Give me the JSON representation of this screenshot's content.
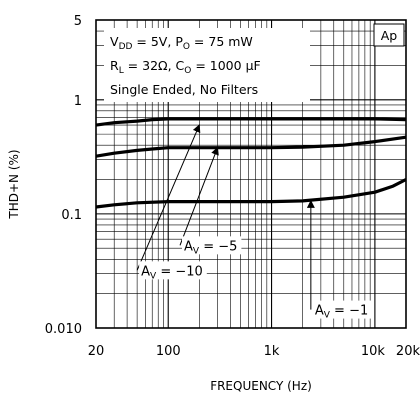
{
  "chart_data": {
    "type": "line",
    "xlabel": "FREQUENCY (Hz)",
    "ylabel": "THD+N (%)",
    "x_scale": "log",
    "y_scale": "log",
    "xlim": [
      20,
      20000
    ],
    "ylim": [
      0.01,
      5
    ],
    "grid": true,
    "x_ticks": [
      {
        "value": 20,
        "label": "20"
      },
      {
        "value": 100,
        "label": "100"
      },
      {
        "value": 1000,
        "label": "1k"
      },
      {
        "value": 10000,
        "label": "10k"
      },
      {
        "value": 20000,
        "label": "20k"
      }
    ],
    "y_ticks": [
      {
        "value": 0.01,
        "label": "0.010"
      },
      {
        "value": 0.1,
        "label": "0.1"
      },
      {
        "value": 1,
        "label": "1"
      },
      {
        "value": 5,
        "label": "5"
      }
    ],
    "conditions": [
      "VDD = 5V, PO = 75 mW",
      "RL = 32Ω, CO = 1000 µF",
      "Single Ended, No Filters"
    ],
    "corner_label": "Ap",
    "series": [
      {
        "key": "av10",
        "label_prefix": "A",
        "label_sub": "V",
        "label_suffix": " = −10",
        "label_tip": {
          "x": 50,
          "y": 0.032
        },
        "arrow_head": {
          "x": 200,
          "y": 0.6
        },
        "points": [
          {
            "x": 20,
            "y": 0.6
          },
          {
            "x": 30,
            "y": 0.63
          },
          {
            "x": 50,
            "y": 0.65
          },
          {
            "x": 70,
            "y": 0.67
          },
          {
            "x": 100,
            "y": 0.68
          },
          {
            "x": 200,
            "y": 0.68
          },
          {
            "x": 500,
            "y": 0.68
          },
          {
            "x": 1000,
            "y": 0.68
          },
          {
            "x": 2000,
            "y": 0.68
          },
          {
            "x": 5000,
            "y": 0.68
          },
          {
            "x": 10000,
            "y": 0.68
          },
          {
            "x": 20000,
            "y": 0.67
          }
        ]
      },
      {
        "key": "av5",
        "label_prefix": "A",
        "label_sub": "V",
        "label_suffix": " = −5",
        "label_tip": {
          "x": 130,
          "y": 0.053
        },
        "arrow_head": {
          "x": 300,
          "y": 0.38
        },
        "points": [
          {
            "x": 20,
            "y": 0.32
          },
          {
            "x": 30,
            "y": 0.34
          },
          {
            "x": 50,
            "y": 0.36
          },
          {
            "x": 70,
            "y": 0.37
          },
          {
            "x": 100,
            "y": 0.38
          },
          {
            "x": 200,
            "y": 0.38
          },
          {
            "x": 500,
            "y": 0.38
          },
          {
            "x": 1000,
            "y": 0.38
          },
          {
            "x": 2000,
            "y": 0.385
          },
          {
            "x": 5000,
            "y": 0.4
          },
          {
            "x": 10000,
            "y": 0.43
          },
          {
            "x": 20000,
            "y": 0.47
          }
        ]
      },
      {
        "key": "av1",
        "label_prefix": "A",
        "label_sub": "V",
        "label_suffix": " = −1",
        "label_tip": {
          "x": 2400,
          "y": 0.0145
        },
        "arrow_head": {
          "x": 2400,
          "y": 0.13
        },
        "points": [
          {
            "x": 20,
            "y": 0.115
          },
          {
            "x": 30,
            "y": 0.12
          },
          {
            "x": 50,
            "y": 0.125
          },
          {
            "x": 100,
            "y": 0.128
          },
          {
            "x": 200,
            "y": 0.128
          },
          {
            "x": 500,
            "y": 0.128
          },
          {
            "x": 1000,
            "y": 0.128
          },
          {
            "x": 2000,
            "y": 0.13
          },
          {
            "x": 5000,
            "y": 0.14
          },
          {
            "x": 10000,
            "y": 0.155
          },
          {
            "x": 15000,
            "y": 0.175
          },
          {
            "x": 20000,
            "y": 0.2
          }
        ]
      }
    ]
  }
}
